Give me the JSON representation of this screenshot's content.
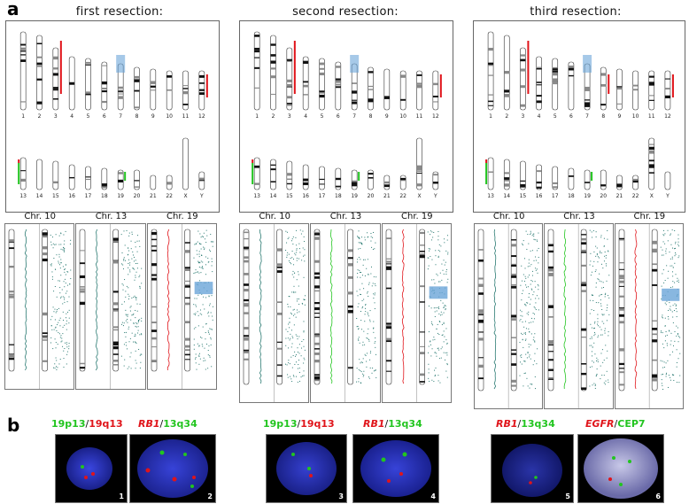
{
  "figure": {
    "panel_a_letter": "a",
    "panel_b_letter": "b",
    "resections": [
      {
        "title": "first resection:"
      },
      {
        "title": "second resection:"
      },
      {
        "title": "third resection:"
      }
    ],
    "karyotype_labels_row1": [
      "1",
      "2",
      "3",
      "4",
      "5",
      "6",
      "7",
      "8",
      "9",
      "10",
      "11",
      "12"
    ],
    "karyotype_labels_row2": [
      "13",
      "14",
      "15",
      "16",
      "17",
      "18",
      "19",
      "20",
      "21",
      "22",
      "X",
      "Y"
    ],
    "chr_panels": [
      "Chr. 10",
      "Chr. 13",
      "Chr. 19"
    ],
    "fish": {
      "probe_19p13": "19p13",
      "probe_19q13": "19q13",
      "probe_RB1": "RB1",
      "probe_13q34": "13q34",
      "probe_EGFR": "EGFR",
      "probe_CEP7": "CEP7",
      "slash": "/",
      "numbers": [
        "1",
        "2",
        "3",
        "4",
        "5",
        "6"
      ]
    },
    "colors": {
      "green_signal": "#22c51f",
      "red_signal": "#e0141a",
      "nucleus_blue": "#2b37c8",
      "cnv_line": "#2a7a72",
      "highlight": "#6aa5d8"
    }
  }
}
